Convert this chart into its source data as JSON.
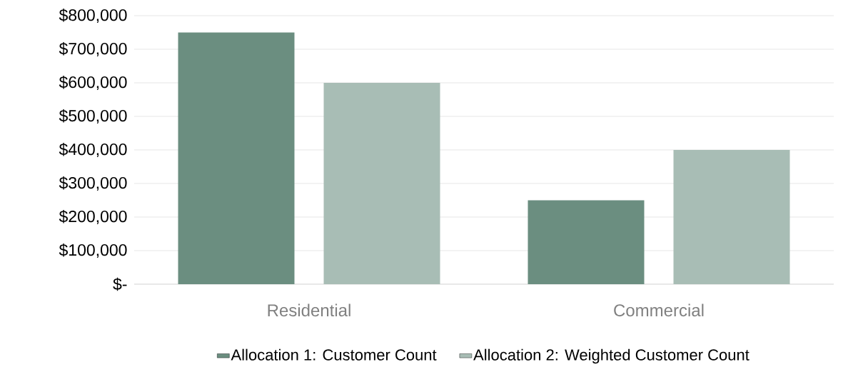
{
  "chart_data": {
    "type": "bar",
    "categories": [
      "Residential",
      "Commercial"
    ],
    "series": [
      {
        "name": "Allocation 1: Customer Count",
        "color": "#6b8e80",
        "values": [
          750000,
          250000
        ]
      },
      {
        "name": "Allocation 2: Weighted Customer Count",
        "color": "#a8bdb5",
        "values": [
          600000,
          400000
        ]
      }
    ],
    "ylim": [
      0,
      800000
    ],
    "yticks": [
      {
        "value": 0,
        "label": "$-"
      },
      {
        "value": 100000,
        "label": "$100,000"
      },
      {
        "value": 200000,
        "label": "$200,000"
      },
      {
        "value": 300000,
        "label": "$300,000"
      },
      {
        "value": 400000,
        "label": "$400,000"
      },
      {
        "value": 500000,
        "label": "$500,000"
      },
      {
        "value": 600000,
        "label": "$600,000"
      },
      {
        "value": 700000,
        "label": "$700,000"
      },
      {
        "value": 800000,
        "label": "$800,000"
      }
    ],
    "grid": "y",
    "legend": "bottom"
  }
}
